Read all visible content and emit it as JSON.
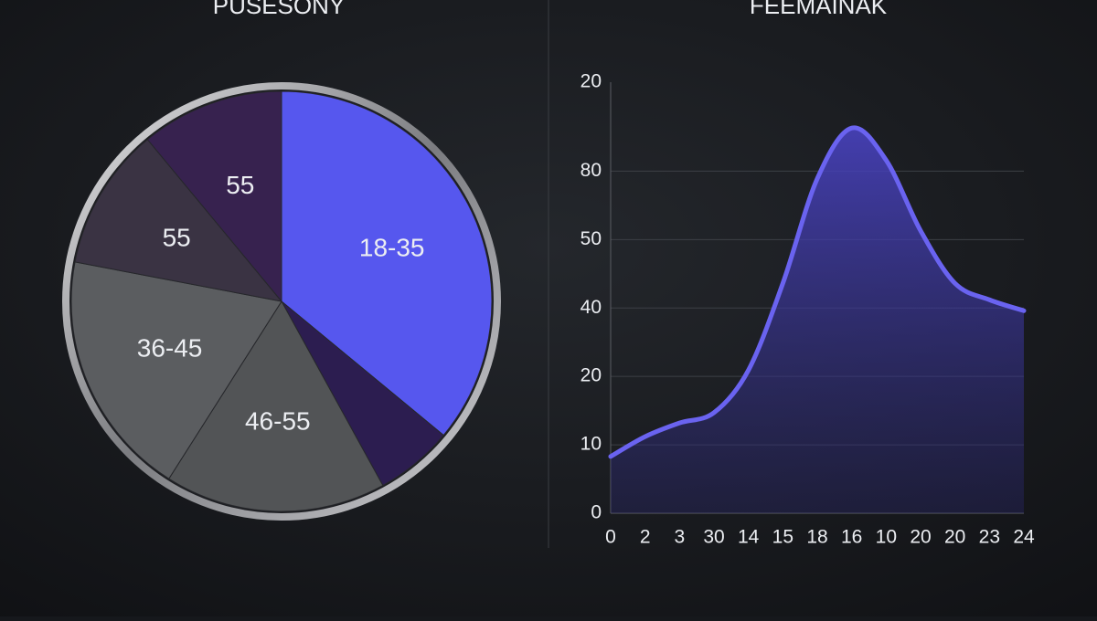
{
  "chart_data": [
    {
      "type": "pie",
      "title": "PUSESONY",
      "categories": [
        "18-35",
        null,
        "46-55",
        "36-45",
        "55",
        "55"
      ],
      "values": [
        36,
        6,
        17,
        19,
        11,
        11
      ],
      "colors": [
        "#5657ee",
        "#2c1d50",
        "#525456",
        "#5b5d60",
        "#3a3343",
        "#37224f"
      ]
    },
    {
      "type": "area",
      "title": "FEEMAINAK",
      "categories": [
        "0",
        "2",
        "3",
        "30",
        "14",
        "15",
        "18",
        "16",
        "10",
        "20",
        "20",
        "23",
        "24"
      ],
      "values": [
        0.83,
        1.12,
        1.32,
        1.47,
        2.09,
        3.36,
        4.89,
        5.63,
        5.16,
        4.13,
        3.36,
        3.12,
        2.96
      ],
      "color": "#6a63f0",
      "ylim": [
        0,
        6.3
      ],
      "yticks": [
        0,
        {
          "value": 1,
          "label": "10"
        },
        {
          "value": 2,
          "label": "20"
        },
        {
          "value": 3,
          "label": "40"
        },
        {
          "value": 4,
          "label": "50"
        },
        {
          "value": 5,
          "label": "80"
        },
        {
          "value": 6.3,
          "label": "20"
        }
      ],
      "grid": true
    }
  ]
}
